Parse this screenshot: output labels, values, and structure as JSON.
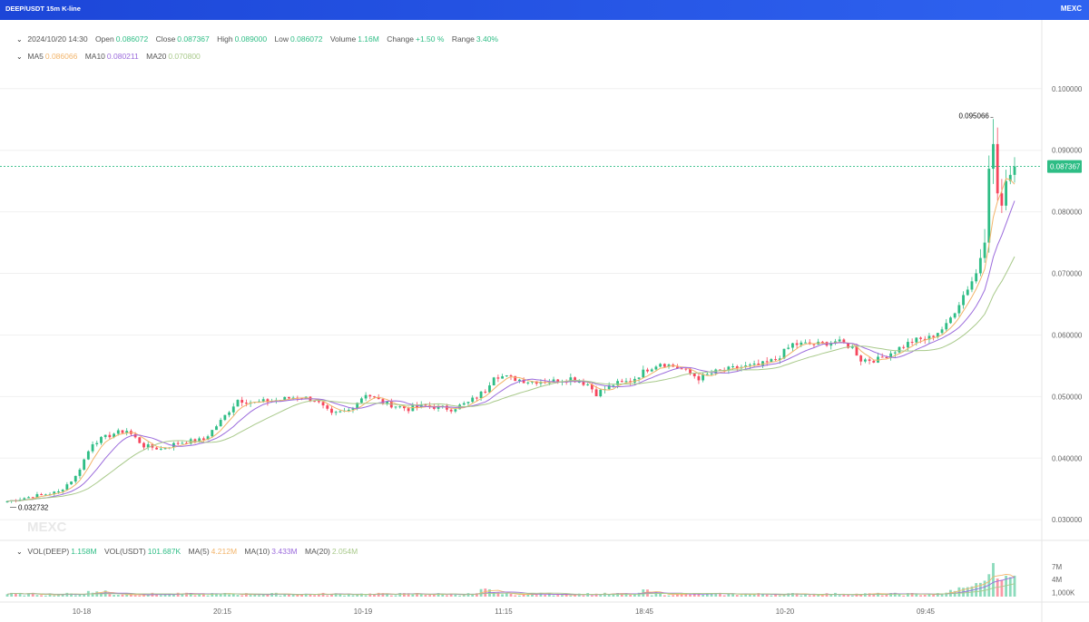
{
  "window": {
    "title": "DEEP/USDT 15m K-line",
    "logo": "MEXC"
  },
  "ohlc": {
    "time": "2024/10/20 14:30",
    "open_label": "Open",
    "open": "0.086072",
    "close_label": "Close",
    "close": "0.087367",
    "high_label": "High",
    "high": "0.089000",
    "low_label": "Low",
    "low": "0.086072",
    "volume_label": "Volume",
    "volume": "1.16M",
    "change_label": "Change",
    "change": "+1.50 %",
    "range_label": "Range",
    "range": "3.40%"
  },
  "ma": {
    "ma5_label": "MA5",
    "ma5": "0.086066",
    "ma10_label": "MA10",
    "ma10": "0.080211",
    "ma20_label": "MA20",
    "ma20": "0.070800"
  },
  "volume_legend": {
    "vol_deep_label": "VOL(DEEP)",
    "vol_deep": "1.158M",
    "vol_usdt_label": "VOL(USDT)",
    "vol_usdt": "101.687K",
    "ma5_label": "MA(5)",
    "ma5": "4.212M",
    "ma10_label": "MA(10)",
    "ma10": "3.433M",
    "ma20_label": "MA(20)",
    "ma20": "2.054M"
  },
  "colors": {
    "up": "#2ebd85",
    "down": "#f6465d",
    "ma5": "#f2b46a",
    "ma10": "#9b6bdc",
    "ma20": "#a8c98a",
    "grid": "#f0f0f0",
    "price_line": "#2ebd85"
  },
  "chart_data": {
    "type": "candlestick",
    "interval": "15m",
    "symbol": "DEEP/USDT",
    "price_axis": {
      "ticks": [
        "0.100000",
        "0.090000",
        "0.080000",
        "0.070000",
        "0.060000",
        "0.050000",
        "0.040000",
        "0.030000"
      ],
      "range": [
        0.029,
        0.1035
      ]
    },
    "volume_axis": {
      "ticks": [
        "7M",
        "4M",
        "1,000K"
      ],
      "range": [
        0,
        8000000
      ]
    },
    "time_axis": {
      "ticks": [
        "10-18",
        "20:15",
        "10-19",
        "11:15",
        "18:45",
        "10-20",
        "09:45"
      ]
    },
    "current_price": "0.087367",
    "max_label": "0.095066",
    "min_label": "0.032732",
    "anchors": [
      [
        0,
        0.033
      ],
      [
        6,
        0.0338
      ],
      [
        12,
        0.0345
      ],
      [
        16,
        0.037
      ],
      [
        20,
        0.0425
      ],
      [
        25,
        0.044
      ],
      [
        28,
        0.0445
      ],
      [
        32,
        0.042
      ],
      [
        36,
        0.0415
      ],
      [
        40,
        0.0425
      ],
      [
        46,
        0.043
      ],
      [
        50,
        0.046
      ],
      [
        54,
        0.0495
      ],
      [
        58,
        0.049
      ],
      [
        64,
        0.0495
      ],
      [
        68,
        0.05
      ],
      [
        72,
        0.0495
      ],
      [
        76,
        0.047
      ],
      [
        80,
        0.0478
      ],
      [
        84,
        0.0505
      ],
      [
        88,
        0.049
      ],
      [
        94,
        0.048
      ],
      [
        98,
        0.0485
      ],
      [
        104,
        0.048
      ],
      [
        108,
        0.049
      ],
      [
        112,
        0.051
      ],
      [
        114,
        0.0535
      ],
      [
        118,
        0.053
      ],
      [
        122,
        0.0525
      ],
      [
        128,
        0.0525
      ],
      [
        132,
        0.053
      ],
      [
        136,
        0.052
      ],
      [
        138,
        0.0505
      ],
      [
        142,
        0.052
      ],
      [
        146,
        0.0525
      ],
      [
        150,
        0.0545
      ],
      [
        153,
        0.0555
      ],
      [
        158,
        0.0545
      ],
      [
        162,
        0.053
      ],
      [
        166,
        0.054
      ],
      [
        172,
        0.0548
      ],
      [
        176,
        0.055
      ],
      [
        180,
        0.056
      ],
      [
        184,
        0.0585
      ],
      [
        190,
        0.0585
      ],
      [
        194,
        0.059
      ],
      [
        198,
        0.058
      ],
      [
        200,
        0.056
      ],
      [
        204,
        0.056
      ],
      [
        208,
        0.0575
      ],
      [
        212,
        0.059
      ],
      [
        216,
        0.0595
      ],
      [
        220,
        0.0615
      ],
      [
        224,
        0.0665
      ],
      [
        227,
        0.07
      ],
      [
        229,
        0.075
      ],
      [
        230,
        0.087
      ],
      [
        231,
        0.091
      ],
      [
        232,
        0.083
      ],
      [
        233,
        0.081
      ],
      [
        234,
        0.085
      ],
      [
        235,
        0.086
      ],
      [
        236,
        0.0874
      ]
    ]
  }
}
